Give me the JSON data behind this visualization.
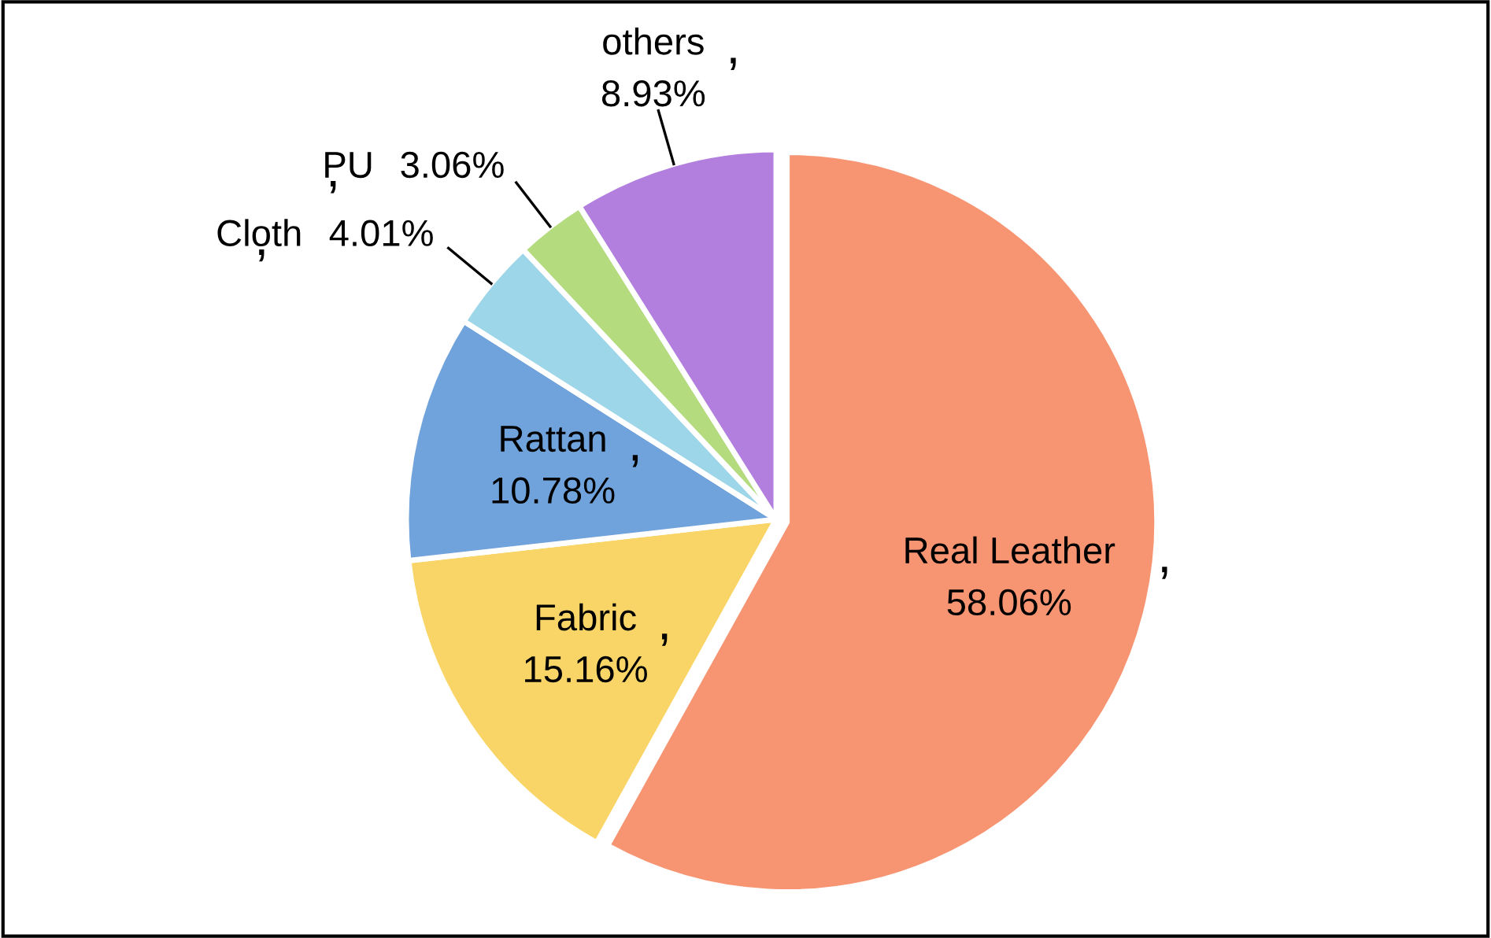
{
  "chart_data": {
    "type": "pie",
    "categories": [
      "Real Leather",
      "Fabric",
      "Rattan",
      "Cloth",
      "PU",
      "others"
    ],
    "values": [
      58.06,
      15.16,
      10.78,
      4.01,
      3.06,
      8.93
    ],
    "colors": [
      "#f79572",
      "#f9d567",
      "#70a3dc",
      "#9dd6e8",
      "#b5db7f",
      "#b27fdf"
    ],
    "value_labels": [
      "58.06%",
      "15.16%",
      "10.78%",
      "4.01%",
      "3.06%",
      "8.93%"
    ],
    "legend": false
  }
}
